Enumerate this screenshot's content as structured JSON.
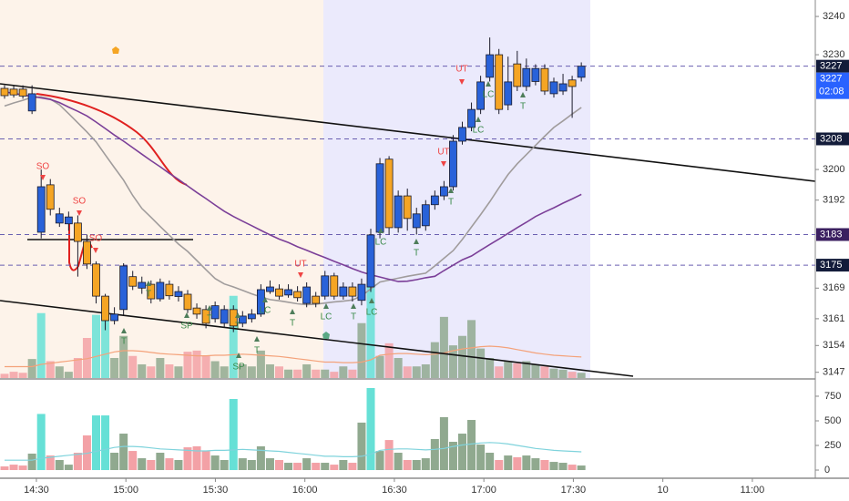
{
  "chart_data": {
    "type": "candlestick",
    "up_color": "#2962d9",
    "down_color": "#f5a524",
    "ylim": [
      3145.5,
      3244.3
    ],
    "yticks": [
      3240,
      3230,
      3200,
      3192,
      3169,
      3161,
      3154,
      3147
    ],
    "xlim": [
      17.8,
      291.1
    ],
    "xticks": [
      {
        "value": 30,
        "label": "14:30"
      },
      {
        "value": 60,
        "label": "15:00"
      },
      {
        "value": 90,
        "label": "15:30"
      },
      {
        "value": 120,
        "label": "16:00"
      },
      {
        "value": 150,
        "label": "16:30"
      },
      {
        "value": 180,
        "label": "17:00"
      },
      {
        "value": 210,
        "label": "17:30"
      },
      {
        "value": 240,
        "label": "10"
      },
      {
        "value": 270,
        "label": "11:00"
      }
    ],
    "candles": {
      "open": [
        3221.2,
        3221.0,
        3221.0,
        3215.3,
        3183.6,
        3196,
        3186,
        3185.8,
        3186,
        3181.2,
        3175.3,
        3166.9,
        3160.5,
        3163.4,
        3172,
        3169,
        3170,
        3166.2,
        3170,
        3166.8,
        3167.4,
        3163.8,
        3163.4,
        3161,
        3159.8,
        3163.4,
        3159.8,
        3161,
        3162.2,
        3168.1,
        3168.8,
        3167.2,
        3168.1,
        3165,
        3166.9,
        3166.9,
        3172.2,
        3166.9,
        3169.3,
        3165.8,
        3169.3,
        3183.6,
        3202.7,
        3184.8,
        3193.1,
        3184.8,
        3185.3,
        3190.8,
        3193.1,
        3195.5,
        3207.4,
        3211,
        3215.7,
        3224.1,
        3230,
        3216.9,
        3227.6,
        3221.7,
        3223,
        3226.4,
        3219.8,
        3220.5,
        3223.4,
        3224.1
      ],
      "high": [
        3222,
        3221.8,
        3222,
        3222,
        3200,
        3197.5,
        3190,
        3189,
        3188,
        3183,
        3176,
        3167.5,
        3164,
        3175.5,
        3173.5,
        3172,
        3171,
        3171.5,
        3171,
        3169.5,
        3168.5,
        3165,
        3164.5,
        3165.5,
        3164.5,
        3164.5,
        3163,
        3163.5,
        3170,
        3171,
        3170,
        3170,
        3169.5,
        3170.5,
        3168,
        3173.5,
        3173,
        3170.5,
        3170.5,
        3171.5,
        3184.5,
        3203,
        3203.5,
        3194.5,
        3195,
        3190,
        3192,
        3194.5,
        3197,
        3209,
        3212.5,
        3217.5,
        3224.5,
        3234.5,
        3231.5,
        3229.5,
        3231,
        3229,
        3227.5,
        3227.5,
        3224,
        3225,
        3224.5,
        3228
      ],
      "low": [
        3218.5,
        3218.8,
        3218.5,
        3214.5,
        3182,
        3188,
        3185,
        3184,
        3172,
        3174,
        3165,
        3158,
        3159.5,
        3162,
        3168.5,
        3167.5,
        3165,
        3165.5,
        3166,
        3165.5,
        3162.5,
        3161,
        3158.5,
        3160,
        3158.8,
        3157.5,
        3158.8,
        3160,
        3161.5,
        3167.5,
        3166,
        3166.5,
        3165.5,
        3164,
        3164,
        3166,
        3166,
        3166,
        3165.5,
        3164.5,
        3168,
        3182,
        3183,
        3183.5,
        3184,
        3183,
        3184,
        3189.5,
        3192,
        3194.5,
        3206.5,
        3210,
        3214.5,
        3223,
        3214.5,
        3215.5,
        3220.5,
        3220.5,
        3222,
        3219.5,
        3218.8,
        3219.5,
        3213.5,
        3223
      ],
      "close": [
        3219.3,
        3219.5,
        3219.2,
        3219.8,
        3195.5,
        3189.6,
        3188.4,
        3187.6,
        3181.2,
        3175.3,
        3166.9,
        3160.5,
        3162.2,
        3174.8,
        3169.5,
        3170.5,
        3166.2,
        3170.5,
        3167,
        3168.1,
        3163.4,
        3162.2,
        3159.8,
        3164.4,
        3163.4,
        3159.1,
        3161.7,
        3162.2,
        3168.6,
        3169.3,
        3166.9,
        3168.6,
        3166.5,
        3169.3,
        3165,
        3172.2,
        3166.9,
        3169.3,
        3166.9,
        3170,
        3182.9,
        3201.5,
        3184.8,
        3193.1,
        3187.2,
        3188.4,
        3190.8,
        3193.1,
        3195.5,
        3207.4,
        3211,
        3215.7,
        3222.9,
        3230,
        3215.7,
        3222.9,
        3221.7,
        3226.4,
        3226.4,
        3220.5,
        3222.9,
        3222.4,
        3221.7,
        3227
      ]
    },
    "series": [
      {
        "color": "#a09c9c",
        "values": [
          3216.6,
          3217.4,
          3218.1,
          3218.9,
          3219.0,
          3218.4,
          3216.9,
          3214.6,
          3212.2,
          3209.8,
          3207.2,
          3203.8,
          3200.5,
          3197.2,
          3193.2,
          3189.8,
          3187.5,
          3185.1,
          3182.8,
          3180.5,
          3178.6,
          3176.2,
          3173.8,
          3171.5,
          3170.1,
          3169.3,
          3168.4,
          3167.5,
          3166.7,
          3166.0,
          3165.7,
          3165.3,
          3164.9,
          3164.7,
          3164.8,
          3165.1,
          3165.4,
          3165.6,
          3165.9,
          3167.0,
          3168.8,
          3170.6,
          3171.1,
          3171.6,
          3172.1,
          3172.5,
          3172.9,
          3174.8,
          3176.8,
          3178.8,
          3181.7,
          3185.0,
          3188.2,
          3191.6,
          3195.2,
          3198.7,
          3201.5,
          3203.9,
          3206.3,
          3208.7,
          3211.0,
          3212.7,
          3214.5,
          3216.2
        ]
      },
      {
        "color": "#7b3f98",
        "values": [
          3220.3,
          3219.9,
          3219.5,
          3219.1,
          3218.7,
          3218.3,
          3217.5,
          3216.3,
          3215.2,
          3214.0,
          3212.4,
          3210.7,
          3209.0,
          3207.4,
          3205.7,
          3204.0,
          3202.3,
          3200.7,
          3199.0,
          3197.4,
          3195.7,
          3194.0,
          3192.4,
          3190.7,
          3189.1,
          3187.7,
          3186.5,
          3185.3,
          3184.1,
          3182.9,
          3181.8,
          3180.9,
          3179.8,
          3178.9,
          3177.9,
          3177.0,
          3176.0,
          3175.1,
          3174.1,
          3173.2,
          3172.5,
          3171.9,
          3171.3,
          3170.7,
          3170.8,
          3171.2,
          3171.7,
          3172.1,
          3173.6,
          3175.0,
          3176.4,
          3177.4,
          3178.9,
          3180.4,
          3181.8,
          3183.3,
          3184.8,
          3186.2,
          3187.7,
          3188.9,
          3190.0,
          3191.2,
          3192.3,
          3193.5
        ]
      }
    ],
    "levels": [
      {
        "value": 3227,
        "color": "#131c3a"
      },
      {
        "value": 3208,
        "color": "#131c3a"
      },
      {
        "value": 3183,
        "color": "#3b2060"
      },
      {
        "value": 3175,
        "color": "#131c3a"
      }
    ],
    "level_line_color": "#6a5fb0",
    "last_price": {
      "value": 3227,
      "countdown": "02:08",
      "color": "#2962ff"
    },
    "annotations": [
      "SO",
      "SO",
      "SO",
      "UT",
      "UT",
      "UT",
      "T",
      "T",
      "SP",
      "T",
      "T",
      "SP",
      "LC",
      "T",
      "T",
      "LC",
      "T",
      "LC",
      "LC",
      "T",
      "T",
      "LC",
      "LC",
      "T"
    ],
    "volume": {
      "values": [
        37,
        55,
        46,
        167,
        570,
        148,
        102,
        55,
        176,
        352,
        555,
        555,
        176,
        370,
        194,
        120,
        102,
        176,
        120,
        102,
        231,
        241,
        194,
        148,
        102,
        722,
        120,
        102,
        241,
        120,
        102,
        74,
        74,
        120,
        74,
        74,
        55,
        102,
        74,
        482,
        833,
        194,
        305,
        176,
        102,
        102,
        120,
        315,
        537,
        287,
        370,
        509,
        259,
        176,
        102,
        148,
        130,
        148,
        120,
        102,
        83,
        74,
        55,
        46
      ],
      "colors": [
        "#f3a1a6",
        "#f3a1a6",
        "#f3a1a6",
        "#90a98f",
        "#66e0d6",
        "#f3a1a6",
        "#90a98f",
        "#90a98f",
        "#f3a1a6",
        "#f3a1a6",
        "#66e0d6",
        "#66e0d6",
        "#90a98f",
        "#90a98f",
        "#f3a1a6",
        "#90a98f",
        "#f3a1a6",
        "#90a98f",
        "#f3a1a6",
        "#90a98f",
        "#f3a1a6",
        "#f3a1a6",
        "#f3a1a6",
        "#90a98f",
        "#90a98f",
        "#66e0d6",
        "#90a98f",
        "#90a98f",
        "#90a98f",
        "#90a98f",
        "#f3a1a6",
        "#90a98f",
        "#f3a1a6",
        "#90a98f",
        "#f3a1a6",
        "#90a98f",
        "#f3a1a6",
        "#90a98f",
        "#f3a1a6",
        "#90a98f",
        "#66e0d6",
        "#90a98f",
        "#f3a1a6",
        "#90a98f",
        "#f3a1a6",
        "#90a98f",
        "#90a98f",
        "#90a98f",
        "#90a98f",
        "#90a98f",
        "#90a98f",
        "#90a98f",
        "#90a98f",
        "#90a98f",
        "#f3a1a6",
        "#90a98f",
        "#f3a1a6",
        "#90a98f",
        "#90a98f",
        "#f3a1a6",
        "#90a98f",
        "#90a98f",
        "#f3a1a6",
        "#90a98f"
      ],
      "ma": [
        100,
        100,
        100,
        100,
        120,
        130,
        140,
        150,
        160,
        170,
        190,
        210,
        230,
        240,
        240,
        235,
        225,
        215,
        210,
        205,
        200,
        195,
        195,
        200,
        200,
        205,
        210,
        205,
        200,
        195,
        190,
        180,
        170,
        160,
        150,
        140,
        140,
        135,
        135,
        140,
        160,
        200,
        210,
        215,
        215,
        210,
        205,
        210,
        220,
        240,
        255,
        265,
        275,
        280,
        275,
        265,
        250,
        235,
        220,
        210,
        200,
        195,
        190,
        185
      ],
      "ma_color": "#7fd3dc",
      "overlay_ma_color": "#f4a27a",
      "ylim": [
        -83,
        907
      ],
      "yticks": [
        0,
        250,
        500,
        750
      ]
    }
  }
}
